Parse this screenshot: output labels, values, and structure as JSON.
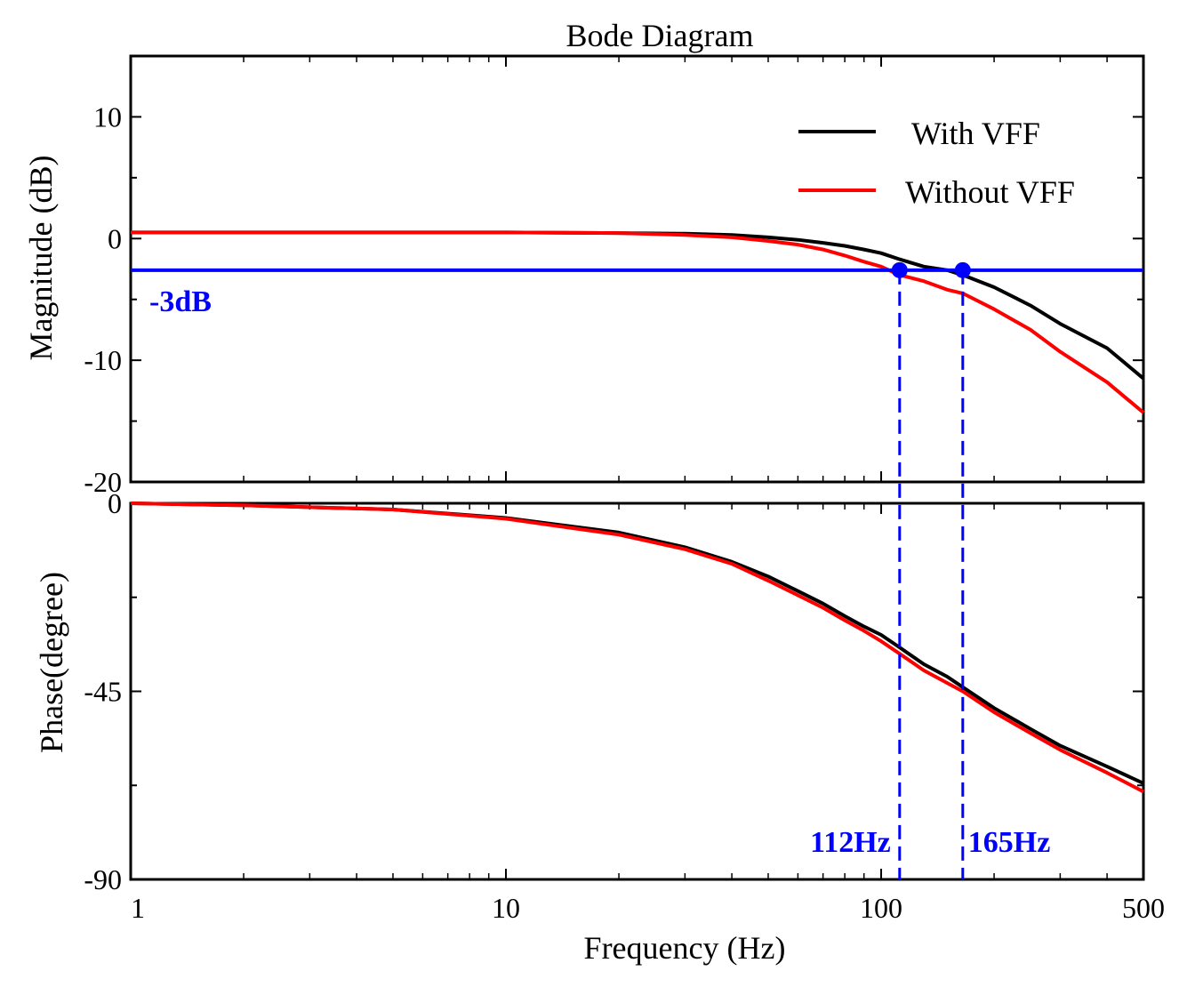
{
  "chart_data": {
    "type": "line",
    "title": "Bode Diagram",
    "xlabel": "Frequency  (Hz)",
    "x_scale": "log",
    "xlim": [
      1,
      500
    ],
    "x_ticks": [
      {
        "value": 1,
        "label": "1"
      },
      {
        "value": 10,
        "label": "10"
      },
      {
        "value": 100,
        "label": "100"
      },
      {
        "value": 500,
        "label": "500"
      }
    ],
    "colors": {
      "with_vff": "#000000",
      "without_vff": "#ff0000",
      "annotation": "#0000ff"
    },
    "panels": [
      {
        "name": "magnitude",
        "ylabel": "Magnitude  (dB)",
        "ylim": [
          -20,
          15
        ],
        "y_ticks": [
          {
            "value": 10,
            "label": "10"
          },
          {
            "value": 0,
            "label": "0"
          },
          {
            "value": -10,
            "label": "-10"
          },
          {
            "value": -20,
            "label": "-20"
          }
        ],
        "series": [
          {
            "name": "With VFF",
            "color": "#000000",
            "x": [
              1,
              2,
              5,
              10,
              20,
              30,
              40,
              50,
              60,
              70,
              80,
              90,
              100,
              112,
              130,
              150,
              165,
              200,
              250,
              300,
              400,
              500
            ],
            "values": [
              0.5,
              0.5,
              0.5,
              0.5,
              0.45,
              0.4,
              0.3,
              0.1,
              -0.1,
              -0.35,
              -0.6,
              -0.9,
              -1.2,
              -1.7,
              -2.3,
              -2.6,
              -3.0,
              -4.0,
              -5.5,
              -7.0,
              -9.0,
              -11.5
            ]
          },
          {
            "name": "Without VFF",
            "color": "#ff0000",
            "x": [
              1,
              2,
              5,
              10,
              20,
              30,
              40,
              50,
              60,
              70,
              80,
              90,
              100,
              112,
              130,
              150,
              165,
              200,
              250,
              300,
              400,
              500
            ],
            "values": [
              0.5,
              0.5,
              0.5,
              0.5,
              0.45,
              0.3,
              0.1,
              -0.2,
              -0.5,
              -0.9,
              -1.4,
              -1.9,
              -2.3,
              -3.0,
              -3.5,
              -4.2,
              -4.5,
              -5.8,
              -7.5,
              -9.3,
              -11.8,
              -14.3
            ]
          },
          {
            "name": "-3dB reference",
            "color": "#0000ff",
            "x": [
              1,
              500
            ],
            "values": [
              -2.6,
              -2.6
            ]
          }
        ]
      },
      {
        "name": "phase",
        "ylabel": "Phase(degree)",
        "ylim": [
          -90,
          0
        ],
        "y_ticks": [
          {
            "value": 0,
            "label": "0"
          },
          {
            "value": -45,
            "label": "-45"
          },
          {
            "value": -90,
            "label": "-90"
          }
        ],
        "series": [
          {
            "name": "With VFF",
            "color": "#000000",
            "x": [
              1,
              2,
              5,
              10,
              20,
              30,
              40,
              50,
              60,
              70,
              80,
              90,
              100,
              112,
              130,
              150,
              165,
              200,
              250,
              300,
              400,
              500
            ],
            "values": [
              0,
              -0.5,
              -1.5,
              -3.5,
              -7,
              -10.5,
              -14,
              -17.5,
              -21,
              -24,
              -27,
              -29.5,
              -31.5,
              -34.5,
              -38.5,
              -41.5,
              -44,
              -49,
              -54,
              -58,
              -63,
              -67
            ]
          },
          {
            "name": "Without VFF",
            "color": "#ff0000",
            "x": [
              1,
              2,
              5,
              10,
              20,
              30,
              40,
              50,
              60,
              70,
              80,
              90,
              100,
              112,
              130,
              150,
              165,
              200,
              250,
              300,
              400,
              500
            ],
            "values": [
              0,
              -0.5,
              -1.5,
              -3.7,
              -7.5,
              -11,
              -14.5,
              -18.5,
              -22,
              -25,
              -28,
              -30.5,
              -33,
              -36,
              -40,
              -43,
              -45,
              -50,
              -55,
              -59,
              -64.5,
              -69
            ]
          }
        ]
      }
    ],
    "legend": {
      "placement": "top-right",
      "entries": [
        {
          "label": "With VFF",
          "color": "#000000"
        },
        {
          "label": "Without VFF",
          "color": "#ff0000"
        }
      ]
    },
    "annotations": {
      "reference_label": "-3dB",
      "reference_level_db": -2.6,
      "markers": [
        {
          "frequency": 112,
          "label": "112Hz"
        },
        {
          "frequency": 165,
          "label": "165Hz"
        }
      ]
    }
  }
}
